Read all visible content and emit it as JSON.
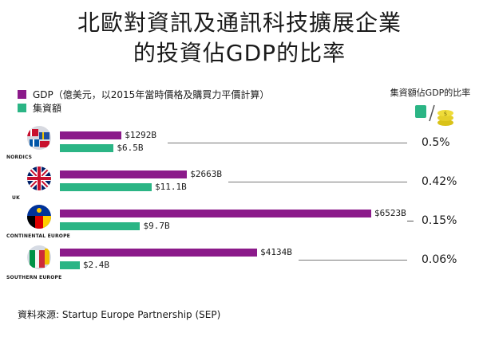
{
  "title_line1": "北歐對資訊及通訊科技擴展企業",
  "title_line2": "的投資佔GDP的比率",
  "legend": {
    "gdp": "GDP（億美元，以2015年當時價格及購買力平價計算）",
    "funding": "集資額"
  },
  "ratio_header": "集資額佔GDP的比率",
  "colors": {
    "gdp": "#8b1a8a",
    "funding": "#2bb585",
    "leader": "#777777"
  },
  "chart_data": {
    "type": "bar",
    "orientation": "horizontal",
    "title": "北歐對資訊及通訊科技擴展企業的投資佔GDP的比率",
    "categories": [
      "NORDICS",
      "UK",
      "CONTINENTAL EUROPE",
      "SOUTHERN EUROPE"
    ],
    "series": [
      {
        "name": "GDP（億美元，以2015年當時價格及購買力平價計算）",
        "values": [
          1292,
          2663,
          6523,
          4134
        ]
      },
      {
        "name": "集資額",
        "values": [
          6.5,
          11.1,
          9.7,
          2.4
        ]
      }
    ],
    "gdp_labels": [
      "$1292B",
      "$2663B",
      "$6523B",
      "$4134B"
    ],
    "funding_labels": [
      "$6.5B",
      "$11.1B",
      "$9.7B",
      "$2.4B"
    ],
    "ratios": [
      "0.5%",
      "0.42%",
      "0.15%",
      "0.06%"
    ],
    "legend_position": "top-left",
    "grid": false
  },
  "source": "資料來源: Startup Europe Partnership (SEP)"
}
